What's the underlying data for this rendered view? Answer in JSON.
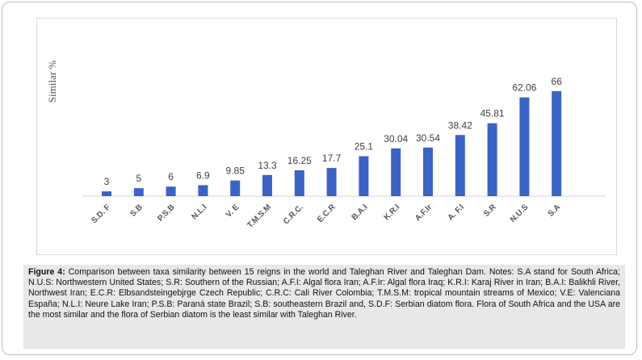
{
  "chart_data": {
    "type": "bar",
    "title": "",
    "xlabel": "",
    "ylabel": "Similar %",
    "categories": [
      "S.D. F",
      "S.B",
      "P.S.B",
      "N.L.I",
      "V. E",
      "T.M.S.M",
      "C.R.C.",
      "E.C.R",
      "B.A.I",
      "K.R.I",
      "A.F.Ir",
      "A. F.I",
      "S.R",
      "N.U.S",
      "S.A"
    ],
    "values": [
      3,
      5,
      6,
      6.9,
      9.85,
      13.3,
      16.25,
      17.7,
      25.1,
      30.04,
      30.54,
      38.42,
      45.81,
      62.06,
      66
    ],
    "value_labels": [
      "3",
      "5",
      "6",
      "6.9",
      "9.85",
      "13.3",
      "16.25",
      "17.7",
      "25.1",
      "30.04",
      "30.54",
      "38.42",
      "45.81",
      "62.06",
      "66"
    ],
    "ylim": [
      0,
      70
    ],
    "grid": false,
    "legend": "none",
    "bar_color": "#3a63c9"
  },
  "caption": {
    "label": "Figure 4:",
    "text": " Comparison between taxa similarity between 15 reigns in the world and Taleghan River and Taleghan Dam. Notes: S.A stand for South Africa; N.U.S: Northwestern United States; S.R:  Southern of the Russian; A.F.I: Algal flora Iran; A.F.Ir: Algal flora Iraq; K.R.I: Karaj River in Iran; B.A.I: Balikhli River, Northwest Iran; E.C.R: Elbsandsteingebjrge Czech Republic; C.R.C: Cali River Colombia; T.M.S.M: tropical mountain streams of Mexico; V.E: Valenciana España; N.L.I: Neure Lake Iran; P.S.B: Paraná state Brazil; S.B: southeastern Brazil and, S.D.F: Serbian diatom flora. Flora of South Africa and the USA are the most similar and the flora of Serbian diatom is the least similar with Taleghan River."
  }
}
